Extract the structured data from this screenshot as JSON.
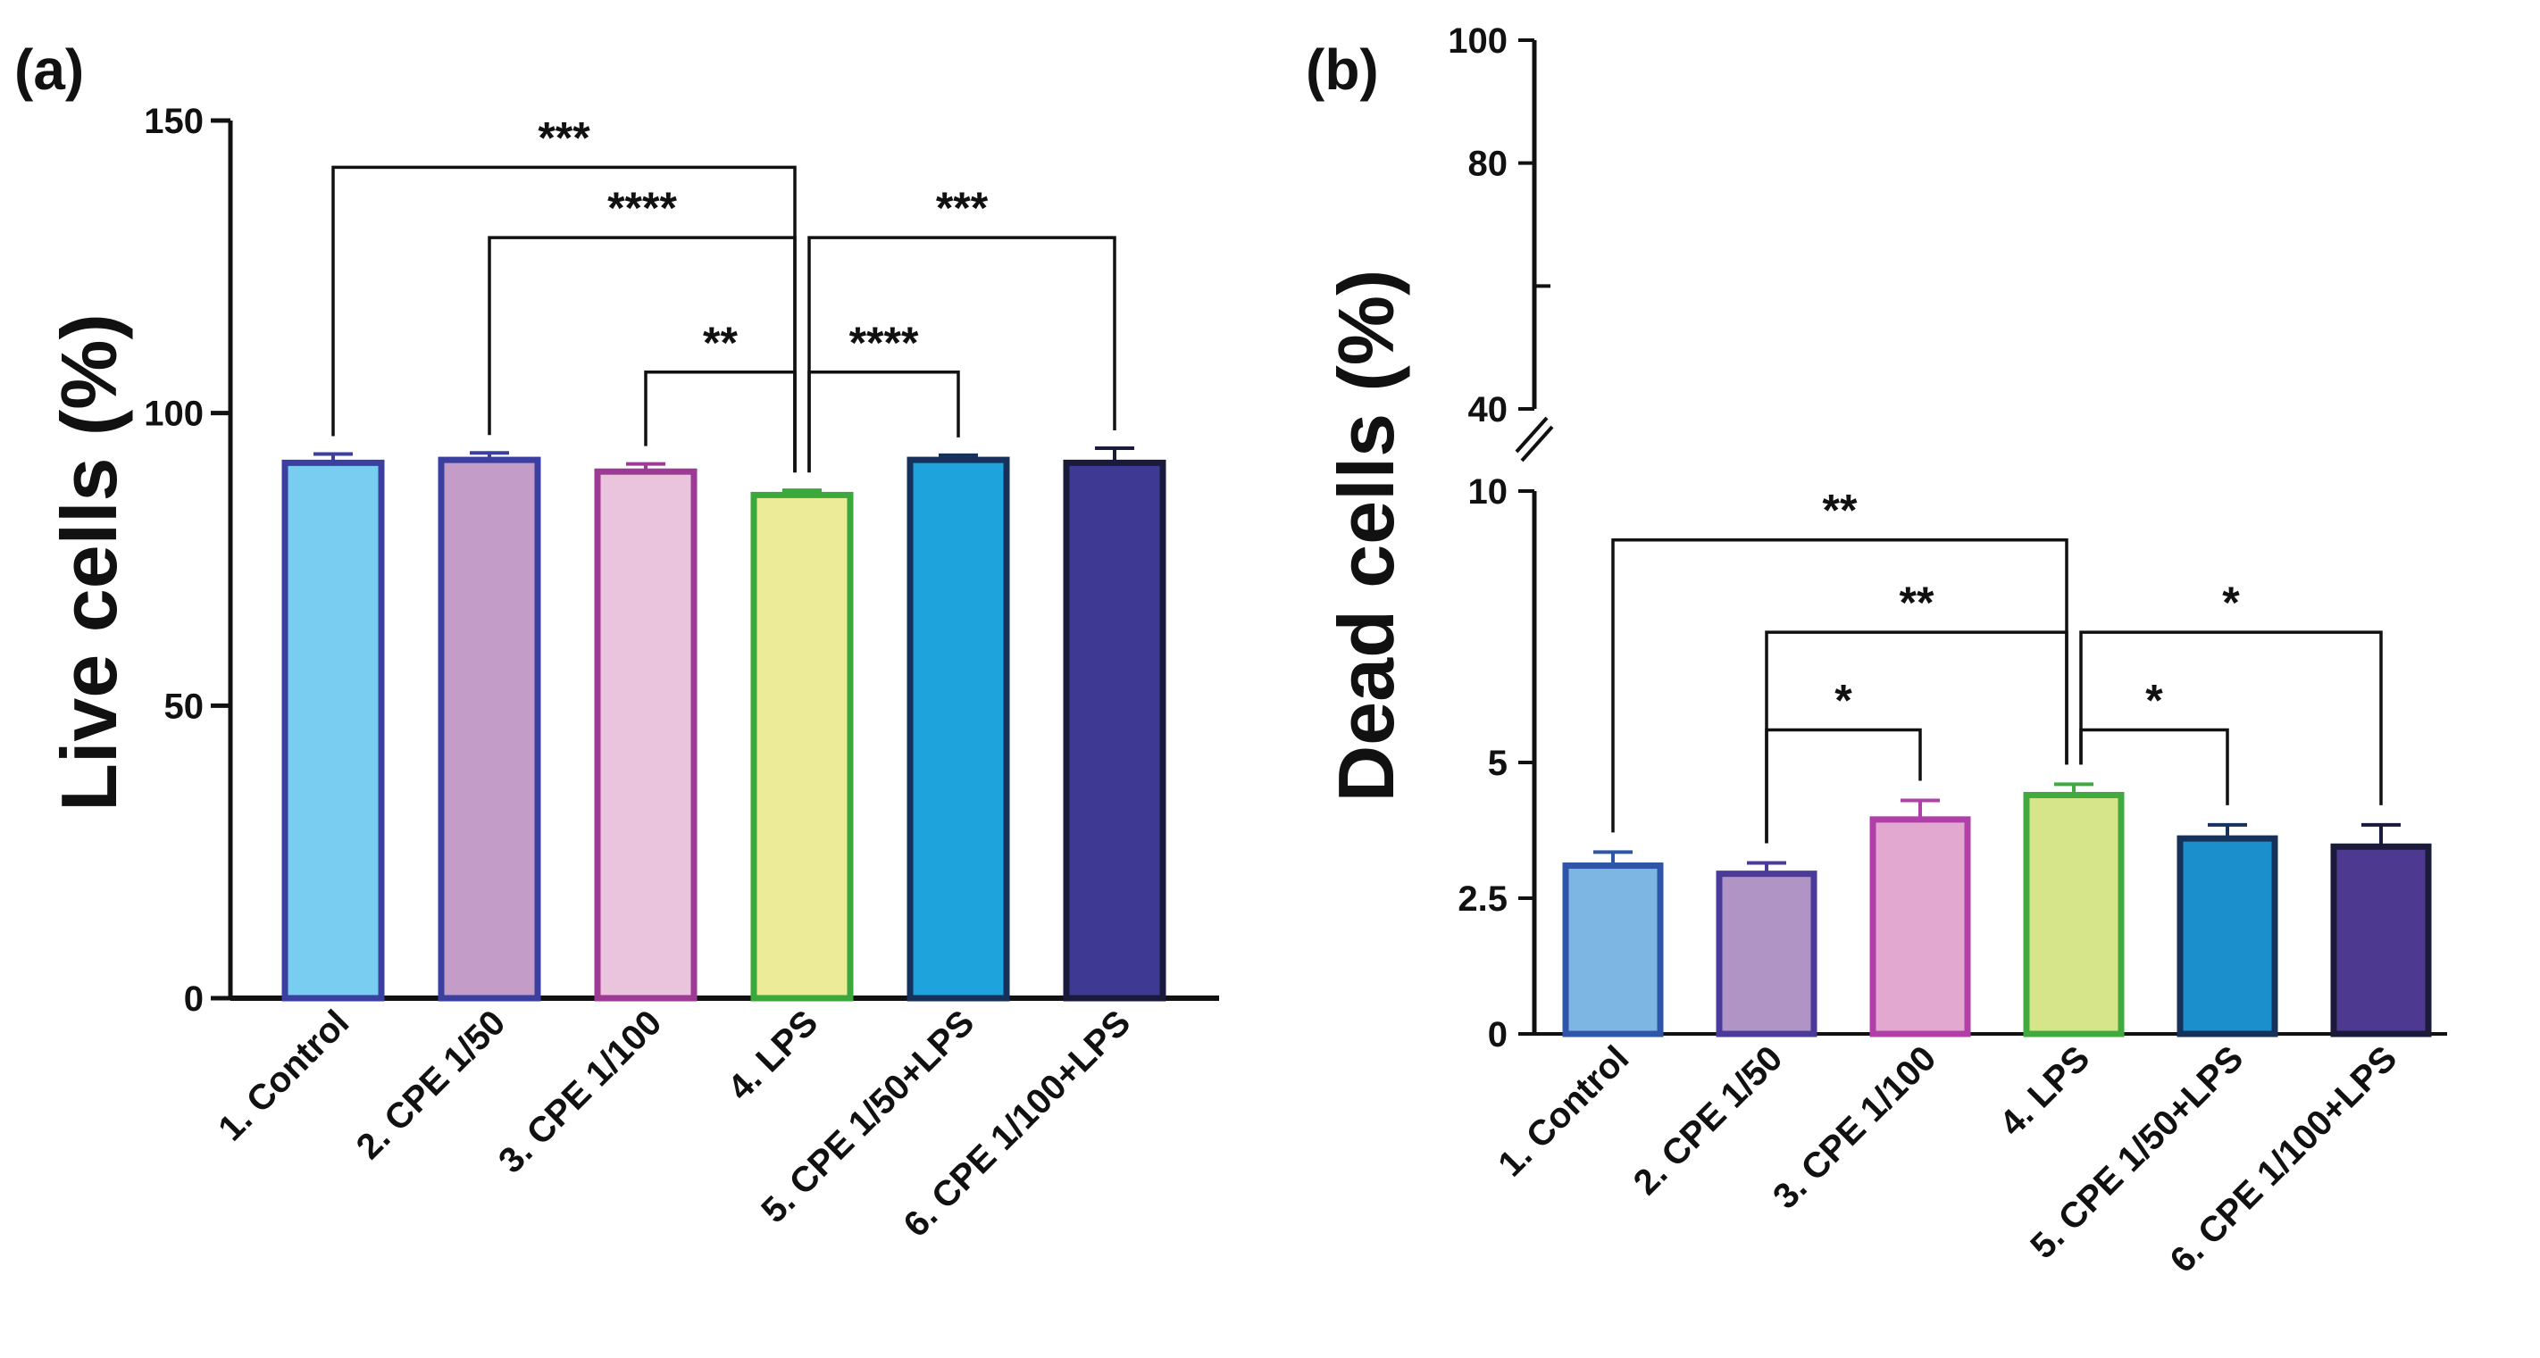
{
  "chart_data": [
    {
      "panel": "(a)",
      "type": "bar",
      "title": "",
      "xlabel": "",
      "ylabel": "Live cells (%)",
      "ylim": [
        0,
        150
      ],
      "yticks": [
        0,
        50,
        100,
        150
      ],
      "categories": [
        "1. Control",
        "2. CPE 1/50",
        "3. CPE 1/100",
        "4. LPS",
        "5. CPE 1/50+LPS",
        "6. CPE 1/100+LPS"
      ],
      "values": [
        91.5,
        92,
        90,
        86,
        92,
        91.5
      ],
      "errors": [
        1.5,
        1.2,
        1.3,
        0.8,
        0.8,
        2.5
      ],
      "fill_colors": [
        "#78cdf1",
        "#c49cc8",
        "#eac3dd",
        "#ecec98",
        "#1ea3dd",
        "#3e3a94"
      ],
      "edge_colors": [
        "#3a3fa0",
        "#3a3fa0",
        "#9c3a96",
        "#3aa83a",
        "#16325a",
        "#1a1a3a"
      ],
      "significance": [
        {
          "from": 0,
          "to": 3,
          "y": 142,
          "label": "***"
        },
        {
          "from": 1,
          "to": 3,
          "y": 130,
          "label": "****"
        },
        {
          "from": 3,
          "to": 5,
          "y": 130,
          "label": "***"
        },
        {
          "from": 2,
          "to": 3,
          "y": 107,
          "label": "**"
        },
        {
          "from": 3,
          "to": 4,
          "y": 107,
          "label": "****"
        }
      ]
    },
    {
      "panel": "(b)",
      "type": "bar",
      "title": "",
      "xlabel": "",
      "ylabel": "Dead cells (%)",
      "broken_axis": true,
      "lower_ylim": [
        0,
        10
      ],
      "lower_yticks": [
        0,
        2.5,
        5,
        10
      ],
      "upper_ylim": [
        40,
        100
      ],
      "upper_yticks": [
        40,
        80,
        100
      ],
      "categories": [
        "1. Control",
        "2. CPE 1/50",
        "3. CPE 1/100",
        "4. LPS",
        "5. CPE 1/50+LPS",
        "6. CPE 1/100+LPS"
      ],
      "values": [
        3.1,
        2.95,
        3.95,
        4.4,
        3.6,
        3.45
      ],
      "errors": [
        0.25,
        0.2,
        0.35,
        0.2,
        0.25,
        0.4
      ],
      "fill_colors": [
        "#7db5e3",
        "#b094c6",
        "#e2a8cf",
        "#d6e48a",
        "#1b8fcc",
        "#4e3990"
      ],
      "edge_colors": [
        "#2e56a8",
        "#4a3a9a",
        "#b040a8",
        "#40aa40",
        "#16325a",
        "#1a1a3a"
      ],
      "significance": [
        {
          "from": 0,
          "to": 3,
          "y": 9.1,
          "label": "**"
        },
        {
          "from": 1,
          "to": 3,
          "y": 7.4,
          "label": "**"
        },
        {
          "from": 3,
          "to": 5,
          "y": 7.4,
          "label": "*"
        },
        {
          "from": 1,
          "to": 2,
          "y": 5.6,
          "label": "*"
        },
        {
          "from": 3,
          "to": 4,
          "y": 5.6,
          "label": "*"
        }
      ]
    }
  ]
}
